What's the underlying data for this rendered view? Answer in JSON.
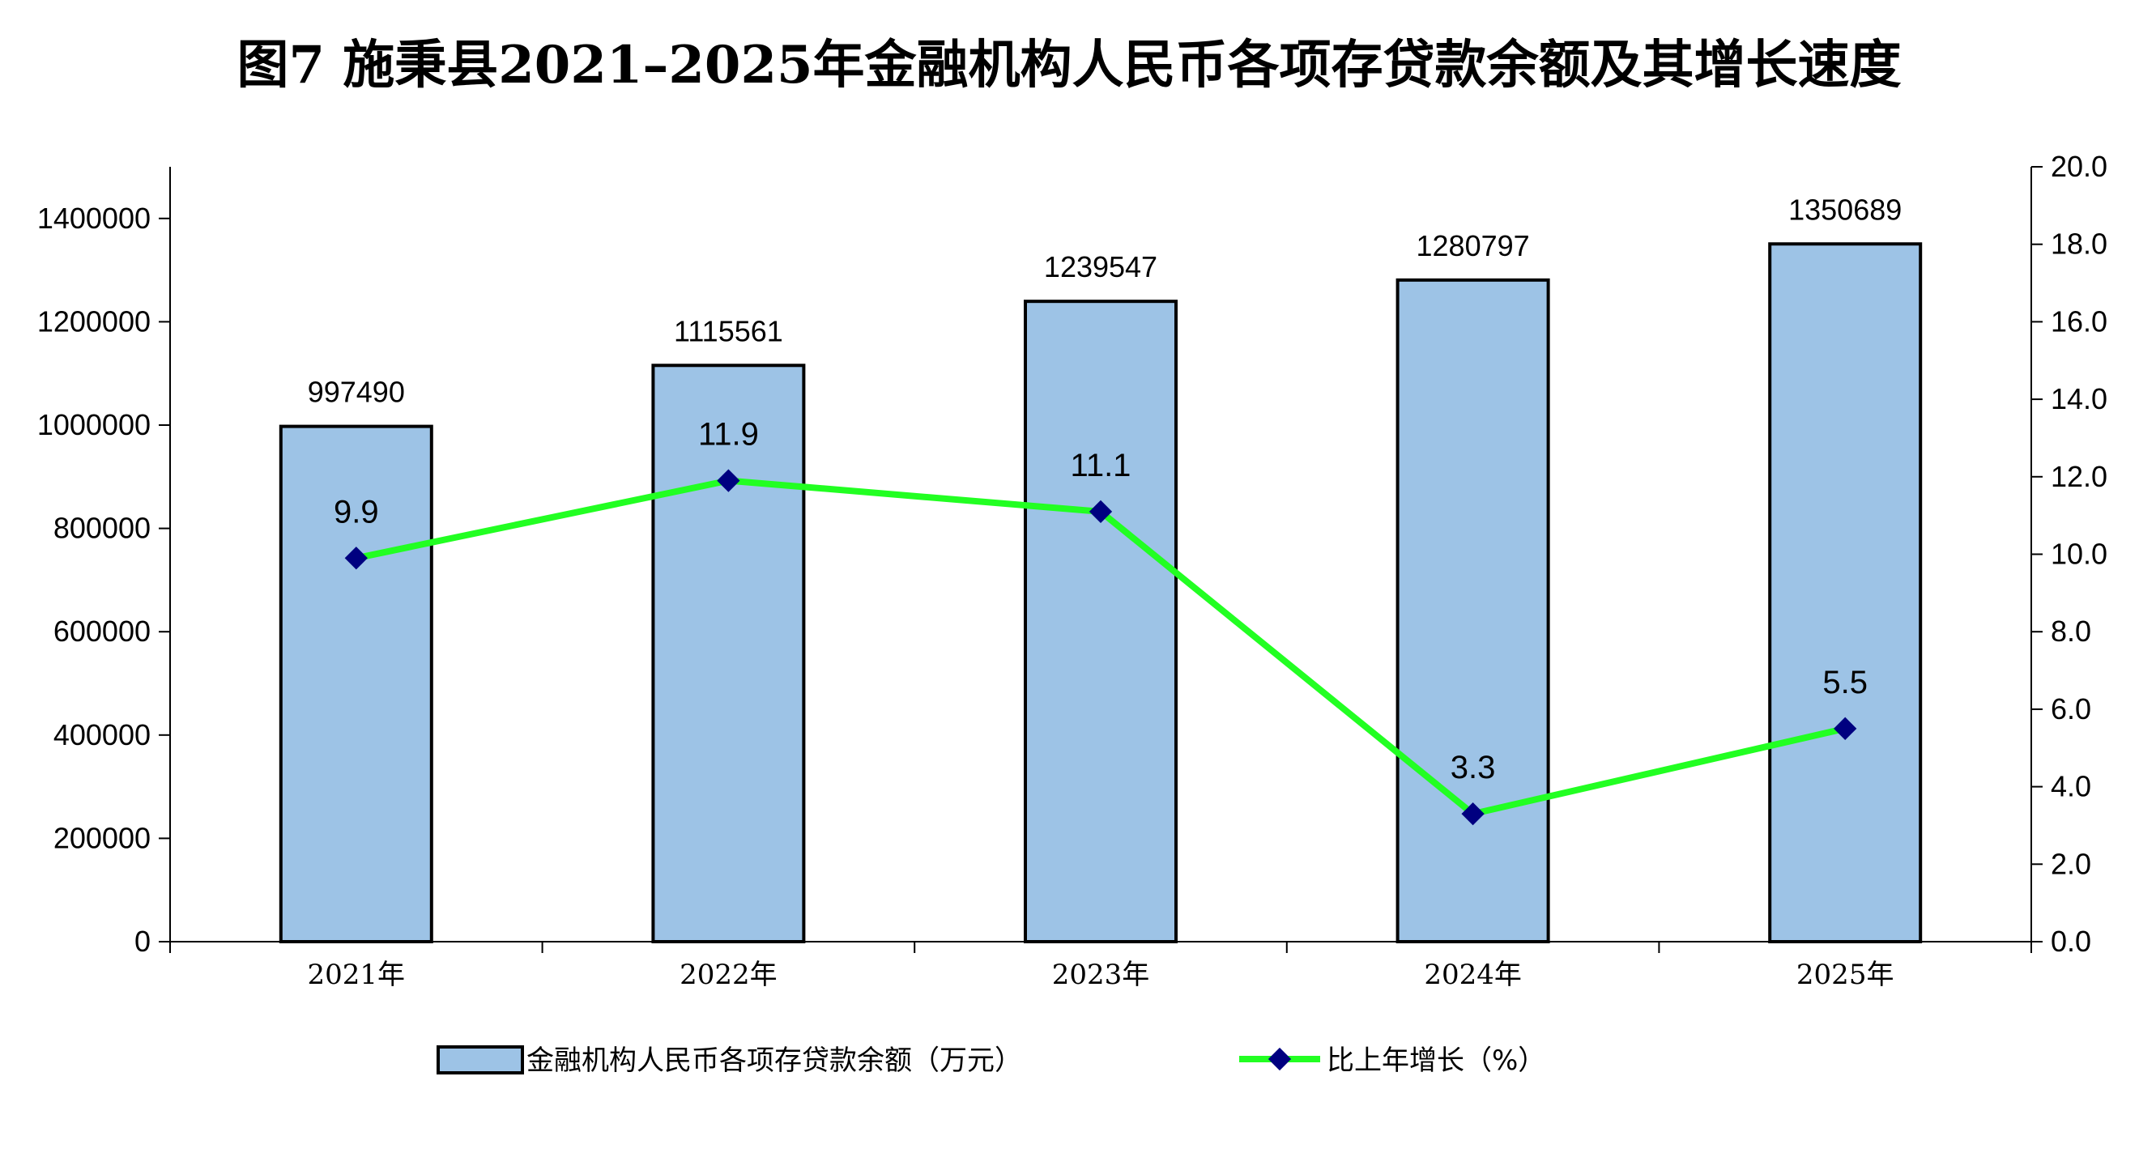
{
  "chart_data": {
    "type": "bar",
    "title": "图7  施秉县2021–2025年金融机构人民币各项存贷款余额及其增长速度",
    "categories": [
      "2021年",
      "2022年",
      "2023年",
      "2024年",
      "2025年"
    ],
    "series": [
      {
        "name": "金融机构人民币各项存贷款余额（万元）",
        "type": "bar",
        "axis": "left",
        "color": "#9DC3E6",
        "values": [
          997490,
          1115561,
          1239547,
          1280797,
          1350689
        ]
      },
      {
        "name": "比上年增长（%）",
        "type": "line",
        "axis": "right",
        "color": "#22FF22",
        "marker_color": "#000080",
        "marker": "diamond",
        "values": [
          9.9,
          11.9,
          11.1,
          3.3,
          5.5
        ]
      }
    ],
    "y_left": {
      "ylim": [
        0,
        1500000
      ],
      "ticks": [
        "0",
        "200000",
        "400000",
        "600000",
        "800000",
        "1000000",
        "1200000",
        "1400000"
      ]
    },
    "y_right": {
      "ylim": [
        0,
        20
      ],
      "ticks": [
        "0.0",
        "2.0",
        "4.0",
        "6.0",
        "8.0",
        "10.0",
        "12.0",
        "14.0",
        "16.0",
        "18.0",
        "20.0"
      ]
    },
    "bar_labels": [
      "997490",
      "1115561",
      "1239547",
      "1280797",
      "1350689"
    ],
    "line_labels": [
      "9.9",
      "11.9",
      "11.1",
      "3.3",
      "5.5"
    ],
    "grid": false,
    "legend_position": "bottom"
  }
}
